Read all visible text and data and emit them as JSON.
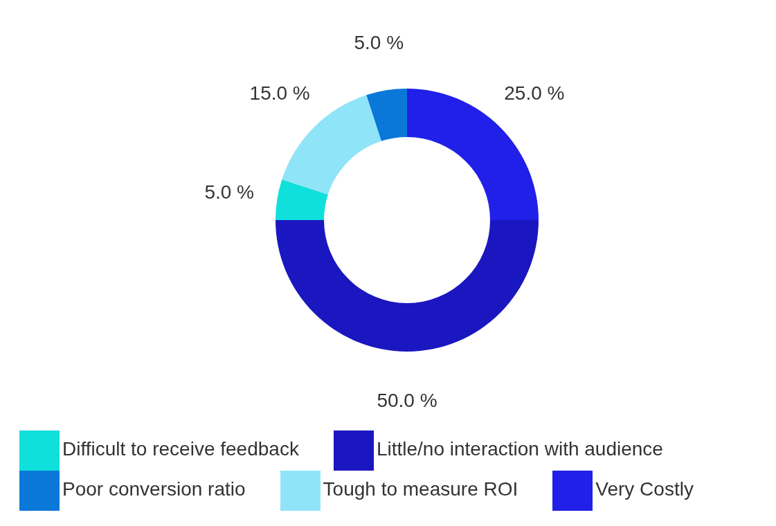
{
  "chart_data": {
    "type": "donut",
    "categories": [
      "Very Costly",
      "Little/no interaction with audience",
      "Difficult to receive feedback",
      "Tough to measure ROI",
      "Poor conversion ratio"
    ],
    "values": [
      25,
      50,
      5,
      15,
      5
    ],
    "colors": [
      "#2020e8",
      "#1a16c0",
      "#10e0dc",
      "#90e4f8",
      "#0a78d8"
    ],
    "value_labels": [
      "25.0 %",
      "50.0 %",
      "5.0 %",
      "15.0 %",
      "5.0 %"
    ],
    "legend": "bottom"
  }
}
